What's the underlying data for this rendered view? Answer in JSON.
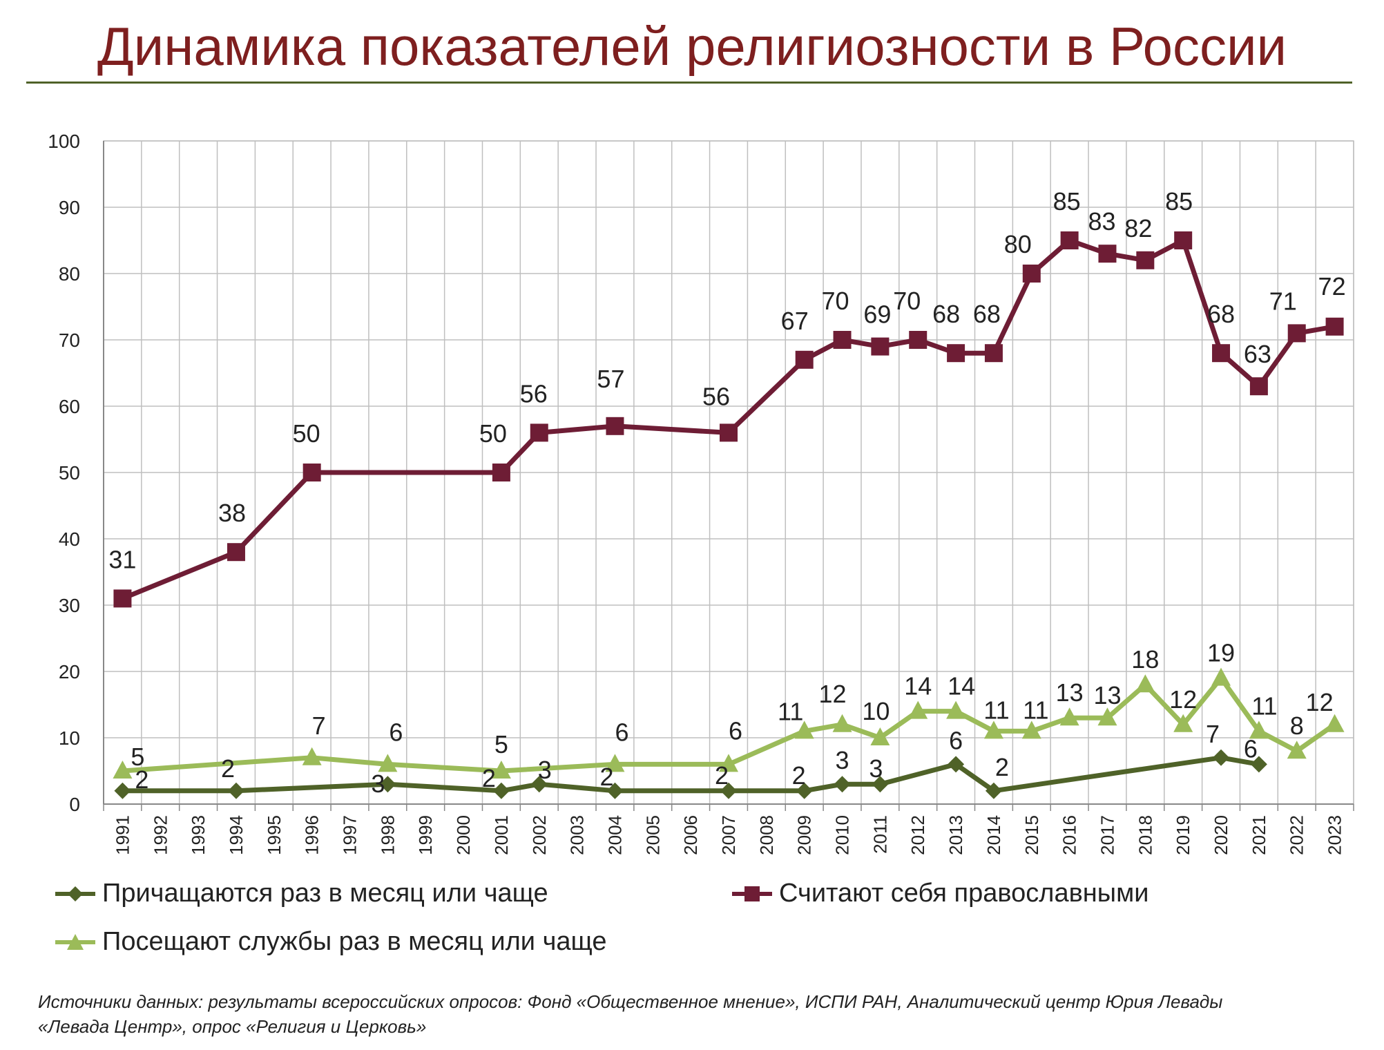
{
  "header": {
    "title": "Динамика показателей религиозности в России"
  },
  "chart_data": {
    "type": "line",
    "y_ticks": [
      "0",
      "10",
      "20",
      "30",
      "40",
      "50",
      "60",
      "70",
      "80",
      "90",
      "100"
    ],
    "ylim": [
      0,
      100
    ],
    "grid": true,
    "legend_position": "bottom",
    "categories": [
      "1991",
      "1992",
      "1993",
      "1994",
      "1995",
      "1996",
      "1997",
      "1998",
      "1999",
      "2000",
      "2001",
      "2002",
      "2003",
      "2004",
      "2005",
      "2006",
      "2007",
      "2008",
      "2009",
      "2010",
      "2011",
      "2012",
      "2013",
      "2014",
      "2015",
      "2016",
      "2017",
      "2018",
      "2019",
      "2020",
      "2021",
      "2022",
      "2023"
    ],
    "series": [
      {
        "name": "Считают себя православными",
        "color": "#6e1d35",
        "marker": "square",
        "points": [
          {
            "x": "1991",
            "y": 31
          },
          {
            "x": "1994",
            "y": 38
          },
          {
            "x": "1996",
            "y": 50
          },
          {
            "x": "2001",
            "y": 50
          },
          {
            "x": "2002",
            "y": 56
          },
          {
            "x": "2004",
            "y": 57
          },
          {
            "x": "2007",
            "y": 56
          },
          {
            "x": "2009",
            "y": 67
          },
          {
            "x": "2010",
            "y": 70
          },
          {
            "x": "2011",
            "y": 69
          },
          {
            "x": "2012",
            "y": 70
          },
          {
            "x": "2013",
            "y": 68
          },
          {
            "x": "2014",
            "y": 68
          },
          {
            "x": "2015",
            "y": 80
          },
          {
            "x": "2016",
            "y": 85
          },
          {
            "x": "2017",
            "y": 83
          },
          {
            "x": "2018",
            "y": 82
          },
          {
            "x": "2019",
            "y": 85
          },
          {
            "x": "2020",
            "y": 68
          },
          {
            "x": "2021",
            "y": 63
          },
          {
            "x": "2022",
            "y": 71
          },
          {
            "x": "2023",
            "y": 72
          }
        ]
      },
      {
        "name": "Посещают службы раз в месяц или чаще",
        "color": "#9bbb59",
        "marker": "triangle",
        "points": [
          {
            "x": "1991",
            "y": 5
          },
          {
            "x": "1996",
            "y": 7
          },
          {
            "x": "1998",
            "y": 6
          },
          {
            "x": "2001",
            "y": 5
          },
          {
            "x": "2004",
            "y": 6
          },
          {
            "x": "2007",
            "y": 6
          },
          {
            "x": "2009",
            "y": 11
          },
          {
            "x": "2010",
            "y": 12
          },
          {
            "x": "2011",
            "y": 10
          },
          {
            "x": "2012",
            "y": 14
          },
          {
            "x": "2013",
            "y": 14
          },
          {
            "x": "2014",
            "y": 11
          },
          {
            "x": "2015",
            "y": 11
          },
          {
            "x": "2016",
            "y": 13
          },
          {
            "x": "2017",
            "y": 13
          },
          {
            "x": "2018",
            "y": 18
          },
          {
            "x": "2019",
            "y": 12
          },
          {
            "x": "2020",
            "y": 19
          },
          {
            "x": "2021",
            "y": 11
          },
          {
            "x": "2022",
            "y": 8
          },
          {
            "x": "2023",
            "y": 12
          }
        ]
      },
      {
        "name": "Причащаются раз в месяц или чаще",
        "color": "#4f6228",
        "marker": "diamond",
        "points": [
          {
            "x": "1991",
            "y": 2
          },
          {
            "x": "1994",
            "y": 2
          },
          {
            "x": "1998",
            "y": 3
          },
          {
            "x": "2001",
            "y": 2
          },
          {
            "x": "2002",
            "y": 3
          },
          {
            "x": "2004",
            "y": 2
          },
          {
            "x": "2007",
            "y": 2
          },
          {
            "x": "2009",
            "y": 2
          },
          {
            "x": "2010",
            "y": 3
          },
          {
            "x": "2011",
            "y": 3
          },
          {
            "x": "2013",
            "y": 6
          },
          {
            "x": "2014",
            "y": 2
          },
          {
            "x": "2020",
            "y": 7
          },
          {
            "x": "2021",
            "y": 6
          }
        ]
      }
    ]
  },
  "legend": {
    "communion": "Причащаются раз в месяц или чаще",
    "orthodox": "Считают себя православными",
    "attend": "Посещают службы раз в месяц или чаще"
  },
  "footer": {
    "source_line1": "Источники данных: результаты всероссийских опросов: Фонд «Общественное мнение», ИСПИ РАН, Аналитический центр Юрия Левады",
    "source_line2": "«Левада Центр», опрос «Религия и Церковь»"
  }
}
